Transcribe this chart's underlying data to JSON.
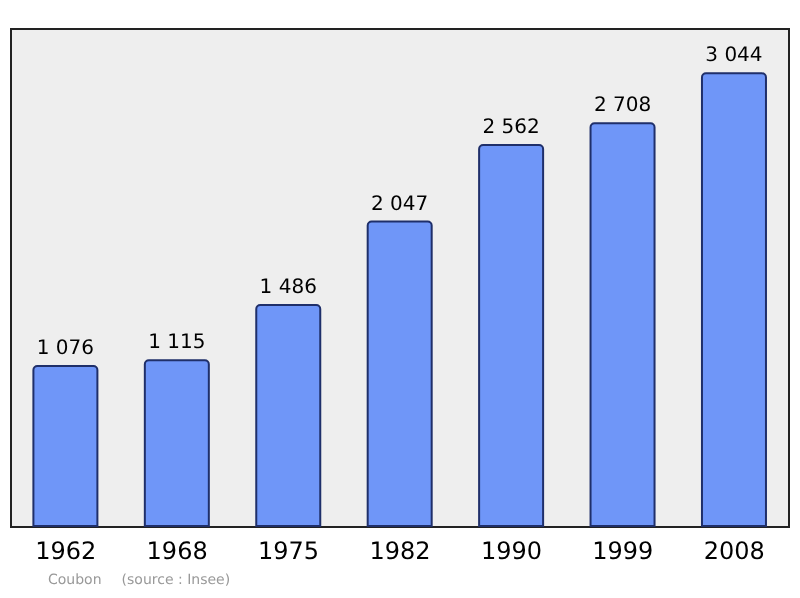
{
  "chart_data": {
    "type": "bar",
    "categories": [
      "1962",
      "1968",
      "1975",
      "1982",
      "1990",
      "1999",
      "2008"
    ],
    "values": [
      1076,
      1115,
      1486,
      2047,
      2562,
      2708,
      3044
    ],
    "value_labels": [
      "1 076",
      "1 115",
      "1 486",
      "2 047",
      "2 562",
      "2 708",
      "3 044"
    ],
    "color": "#6f96f8",
    "annotations": [
      "Coubon",
      "(source : Insee)"
    ]
  }
}
